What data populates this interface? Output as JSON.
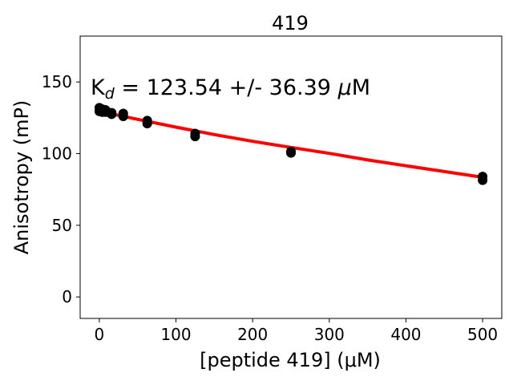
{
  "chart_data": {
    "type": "scatter",
    "title": "419",
    "xlabel": "[peptide 419] (μM)",
    "ylabel": "Anisotropy (mP)",
    "xlim": [
      -25,
      525
    ],
    "ylim": [
      -15,
      182
    ],
    "x_ticks": [
      0,
      100,
      200,
      300,
      400,
      500
    ],
    "y_ticks": [
      0,
      50,
      100,
      150
    ],
    "grid": false,
    "annotation": {
      "kd_symbol": "K",
      "kd_subscript": "d",
      "kd_text": " = 123.54 +/- 36.39 ",
      "kd_unit_mu": "μ",
      "kd_unit": "M"
    },
    "points": [
      {
        "x": 0,
        "y": 132
      },
      {
        "x": 0,
        "y": 129.5
      },
      {
        "x": 1,
        "y": 131
      },
      {
        "x": 2,
        "y": 130
      },
      {
        "x": 4,
        "y": 131
      },
      {
        "x": 4,
        "y": 129
      },
      {
        "x": 8,
        "y": 130.5
      },
      {
        "x": 8,
        "y": 129
      },
      {
        "x": 16,
        "y": 128.5
      },
      {
        "x": 16,
        "y": 127.5
      },
      {
        "x": 31.25,
        "y": 128
      },
      {
        "x": 31.25,
        "y": 126
      },
      {
        "x": 62.5,
        "y": 123
      },
      {
        "x": 62.5,
        "y": 121
      },
      {
        "x": 125,
        "y": 114
      },
      {
        "x": 125,
        "y": 112
      },
      {
        "x": 250,
        "y": 101.5
      },
      {
        "x": 250,
        "y": 100.5
      },
      {
        "x": 500,
        "y": 84
      },
      {
        "x": 500,
        "y": 81.5
      }
    ],
    "fit": {
      "color": "#ff0000",
      "model": "anisotropy fit",
      "x": [
        0,
        50,
        100,
        150,
        200,
        250,
        300,
        350,
        400,
        450,
        500
      ],
      "y": [
        129.5,
        123.9,
        118.5,
        113.3,
        108.6,
        104.3,
        100.2,
        95.6,
        91.5,
        87.5,
        83.5
      ]
    },
    "point_color": "#000000"
  }
}
